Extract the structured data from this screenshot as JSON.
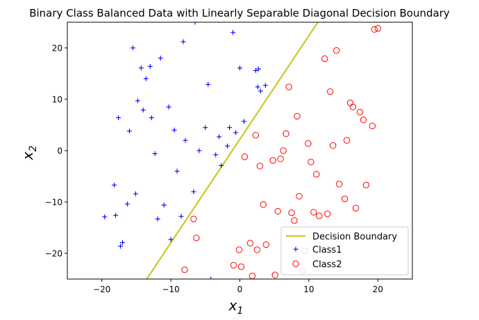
{
  "chart_data": {
    "type": "scatter",
    "title": "Binary Class Balanced Data with Linearly Separable Diagonal Decision Boundary",
    "xlabel": "x",
    "xlabel_sub": "1",
    "ylabel": "x",
    "ylabel_sub": "2",
    "xlim": [
      -25,
      25
    ],
    "ylim": [
      -25,
      25
    ],
    "xticks": [
      -20,
      -10,
      0,
      10,
      20
    ],
    "yticks": [
      -20,
      -10,
      0,
      10,
      20
    ],
    "grid": false,
    "legend_position": "lower-right",
    "boundary": {
      "name": "Decision Boundary",
      "color": "#bfbf00",
      "points": [
        [
          -13.5,
          -25
        ],
        [
          11.3,
          25
        ]
      ]
    },
    "series": [
      {
        "name": "Class1",
        "marker": "plus",
        "color": "#0000ff",
        "points": [
          [
            -6.5,
            25
          ],
          [
            -1,
            23
          ],
          [
            -8.2,
            21.2
          ],
          [
            -15.5,
            20
          ],
          [
            -11.5,
            18
          ],
          [
            -14.3,
            16.1
          ],
          [
            -13,
            16.4
          ],
          [
            0,
            16.1
          ],
          [
            2.3,
            15.6
          ],
          [
            2.7,
            15.9
          ],
          [
            -13.6,
            14
          ],
          [
            -4.6,
            12.9
          ],
          [
            2.6,
            12.4
          ],
          [
            3.7,
            12.7
          ],
          [
            3,
            11.6
          ],
          [
            -14.8,
            9.7
          ],
          [
            -10.3,
            8.5
          ],
          [
            -14,
            7.9
          ],
          [
            -17.6,
            6.4
          ],
          [
            -12.8,
            6.4
          ],
          [
            0.6,
            5.7
          ],
          [
            -5,
            4.5
          ],
          [
            -1.5,
            4.5
          ],
          [
            -9.5,
            4
          ],
          [
            -16,
            3.8
          ],
          [
            -0.6,
            3.5
          ],
          [
            -3,
            2.7
          ],
          [
            -7.9,
            2
          ],
          [
            -1.8,
            0.9
          ],
          [
            -5.9,
            0
          ],
          [
            -12.3,
            -0.6
          ],
          [
            -3.5,
            -0.8
          ],
          [
            -2.7,
            -2.9
          ],
          [
            -9.1,
            -4
          ],
          [
            -6.7,
            -8
          ],
          [
            -18.2,
            -6.7
          ],
          [
            -15.1,
            -8.4
          ],
          [
            -16.3,
            -10.4
          ],
          [
            -11,
            -10.6
          ],
          [
            -19.6,
            -12.9
          ],
          [
            -18,
            -12.6
          ],
          [
            -8.5,
            -12.8
          ],
          [
            -11.9,
            -13.3
          ],
          [
            -10,
            -17.3
          ],
          [
            -17,
            -17.9
          ],
          [
            -17.3,
            -18.6
          ],
          [
            -4.2,
            -25
          ]
        ]
      },
      {
        "name": "Class2",
        "marker": "circle",
        "color": "#ff0000",
        "points": [
          [
            19.5,
            23.6
          ],
          [
            20,
            23.8
          ],
          [
            14,
            19.5
          ],
          [
            12.3,
            17.9
          ],
          [
            7.1,
            12.4
          ],
          [
            13.1,
            11.5
          ],
          [
            16,
            9.3
          ],
          [
            16.4,
            8.5
          ],
          [
            17.4,
            7.5
          ],
          [
            8.3,
            6.7
          ],
          [
            17.9,
            6
          ],
          [
            19.2,
            4.8
          ],
          [
            6.7,
            3.3
          ],
          [
            2.3,
            3
          ],
          [
            15.5,
            2
          ],
          [
            9.9,
            1.4
          ],
          [
            13.5,
            1
          ],
          [
            6.3,
            0
          ],
          [
            0.7,
            -1.2
          ],
          [
            5.9,
            -1.6
          ],
          [
            4.8,
            -1.9
          ],
          [
            10.3,
            -2.2
          ],
          [
            2.9,
            -3
          ],
          [
            11.1,
            -4.6
          ],
          [
            14.4,
            -6.5
          ],
          [
            18.3,
            -6.7
          ],
          [
            8.6,
            -8.9
          ],
          [
            3.4,
            -10.5
          ],
          [
            15.2,
            -9.4
          ],
          [
            16.8,
            -11.2
          ],
          [
            5.5,
            -11.8
          ],
          [
            7.5,
            -12.1
          ],
          [
            10.7,
            -12
          ],
          [
            11.5,
            -12.7
          ],
          [
            12.7,
            -12.3
          ],
          [
            7.9,
            -13.6
          ],
          [
            -6.7,
            -13.3
          ],
          [
            -6.3,
            -17
          ],
          [
            1.5,
            -18
          ],
          [
            3.8,
            -18.3
          ],
          [
            -0.1,
            -19.3
          ],
          [
            2.5,
            -19.3
          ],
          [
            9.4,
            -19.5
          ],
          [
            -8,
            -23.2
          ],
          [
            -0.9,
            -22.3
          ],
          [
            0.2,
            -22.6
          ],
          [
            11.4,
            -22
          ],
          [
            1.8,
            -24.4
          ],
          [
            5.1,
            -24.2
          ],
          [
            9.1,
            -23.5
          ]
        ]
      }
    ]
  }
}
